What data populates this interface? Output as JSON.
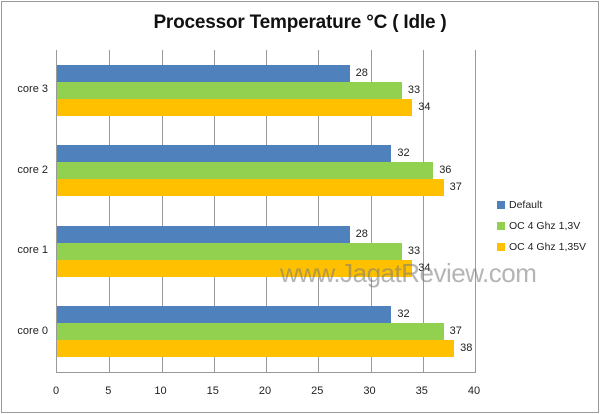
{
  "chart_data": {
    "type": "bar",
    "orientation": "horizontal",
    "title": "Processor Temperature  °C ( Idle )",
    "xlabel": "",
    "ylabel": "",
    "xlim": [
      0,
      40
    ],
    "x_ticks": [
      "0",
      "5",
      "10",
      "15",
      "20",
      "25",
      "30",
      "35",
      "40"
    ],
    "grid": true,
    "legend_position": "right",
    "categories": [
      "core 3",
      "core 2",
      "core 1",
      "core 0"
    ],
    "series": [
      {
        "name": "Default",
        "color": "#4f81bd",
        "values": [
          28,
          32,
          28,
          32
        ]
      },
      {
        "name": "OC 4 Ghz 1,3V",
        "color": "#92d050",
        "values": [
          33,
          36,
          33,
          37
        ]
      },
      {
        "name": "OC 4 Ghz 1,35V",
        "color": "#ffc000",
        "values": [
          34,
          37,
          34,
          38
        ]
      }
    ],
    "data_labels": true
  },
  "watermark": "www.JagatReview.com"
}
